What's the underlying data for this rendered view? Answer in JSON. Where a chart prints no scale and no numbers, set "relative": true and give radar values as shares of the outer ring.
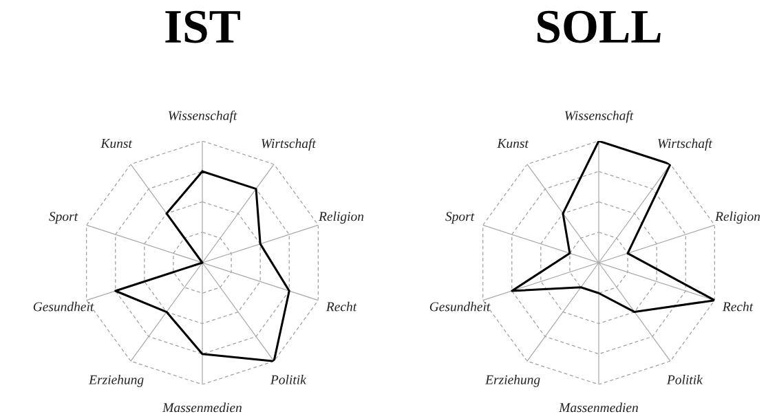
{
  "chart_data": [
    {
      "type": "radar",
      "title": "IST",
      "relative": true,
      "grid": true,
      "categories": [
        "Wissenschaft",
        "Wirtschaft",
        "Religion",
        "Recht",
        "Politik",
        "Massenmedien",
        "Erziehung",
        "Gesundheit",
        "Sport",
        "Kunst"
      ],
      "series": [
        {
          "color": "#000000",
          "values": [
            0.75,
            0.75,
            0.5,
            0.75,
            1,
            0.75,
            0.5,
            0.75,
            0,
            0.5
          ]
        }
      ]
    },
    {
      "type": "radar",
      "title": "SOLL",
      "relative": true,
      "grid": true,
      "categories": [
        "Wissenschaft",
        "Wirtschaft",
        "Religion",
        "Recht",
        "Politik",
        "Massenmedien",
        "Erziehung",
        "Gesundheit",
        "Sport",
        "Kunst"
      ],
      "series": [
        {
          "color": "#000000",
          "values": [
            1,
            1,
            0.25,
            1,
            0.5,
            0.25,
            0.25,
            0.75,
            0.25,
            0.5
          ]
        }
      ]
    }
  ]
}
